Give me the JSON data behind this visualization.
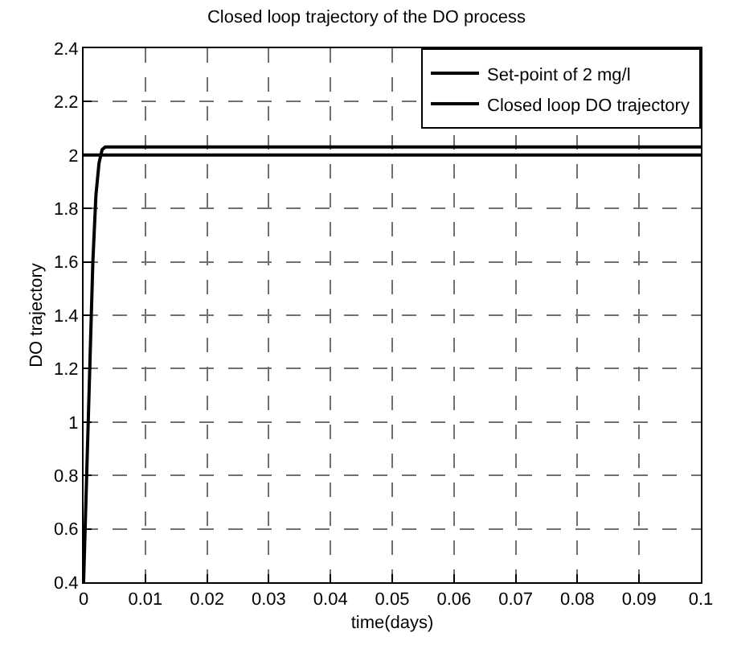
{
  "chart_data": {
    "type": "line",
    "title": "Closed loop trajectory of the DO process",
    "xlabel": "time(days)",
    "ylabel": "DO trajectory",
    "xlim": [
      0,
      0.1
    ],
    "xticks": [
      0,
      0.01,
      0.02,
      0.03,
      0.04,
      0.05,
      0.06,
      0.07,
      0.08,
      0.09,
      0.1
    ],
    "ylim": [
      0.4,
      2.4
    ],
    "yticks": [
      0.4,
      0.6,
      0.8,
      1,
      1.2,
      1.4,
      1.6,
      1.8,
      2,
      2.2,
      2.4
    ],
    "grid": true,
    "legend": "top right",
    "line_style": "solid",
    "marker": "none",
    "series": [
      {
        "name": "Set-point of 2 mg/l",
        "color": "#000000",
        "x": [
          0,
          0.1
        ],
        "values": [
          2,
          2
        ]
      },
      {
        "name": "Closed loop DO trajectory",
        "color": "#000000",
        "x": [
          0,
          0.0005,
          0.001,
          0.0015,
          0.002,
          0.0025,
          0.003,
          0.0035,
          0.1
        ],
        "values": [
          0.4,
          0.8,
          1.2,
          1.6,
          1.85,
          1.97,
          2.02,
          2.03,
          2.03
        ]
      }
    ]
  }
}
